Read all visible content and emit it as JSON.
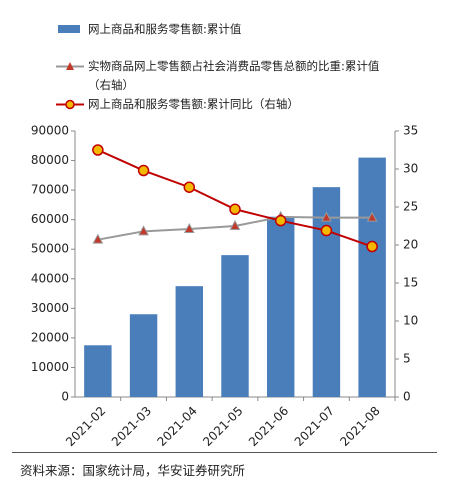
{
  "chart_data": {
    "type": "bar",
    "categories": [
      "2021-02",
      "2021-03",
      "2021-04",
      "2021-05",
      "2021-06",
      "2021-07",
      "2021-08"
    ],
    "series": [
      {
        "name": "网上商品和服务零售额:累计值",
        "type": "bar",
        "color": "#4a7ebb",
        "values": [
          17500,
          28000,
          37500,
          48000,
          61000,
          71000,
          81000
        ]
      },
      {
        "name": "实物商品网上零售额占社会消费品零售总额的比重:累计值（右轴）",
        "type": "line",
        "axis": "y2",
        "color": "#999999",
        "marker": "triangle",
        "marker_color": "#c0392b",
        "values": [
          20.7,
          21.8,
          22.1,
          22.5,
          23.7,
          23.6,
          23.6
        ]
      },
      {
        "name": "网上商品和服务零售额:累计同比（右轴）",
        "type": "line",
        "axis": "y2",
        "color": "#c00000",
        "marker": "circle",
        "marker_color": "#f5b800",
        "values": [
          32.5,
          29.8,
          27.6,
          24.7,
          23.2,
          21.9,
          19.8
        ]
      }
    ],
    "ylim": [
      0,
      90000
    ],
    "yticks": [
      0,
      10000,
      20000,
      30000,
      40000,
      50000,
      60000,
      70000,
      80000,
      90000
    ],
    "y2lim": [
      0,
      35
    ],
    "y2ticks": [
      0,
      5,
      10,
      15,
      20,
      25,
      30,
      35
    ],
    "source": "资料来源：国家统计局，华安证券研究所"
  }
}
